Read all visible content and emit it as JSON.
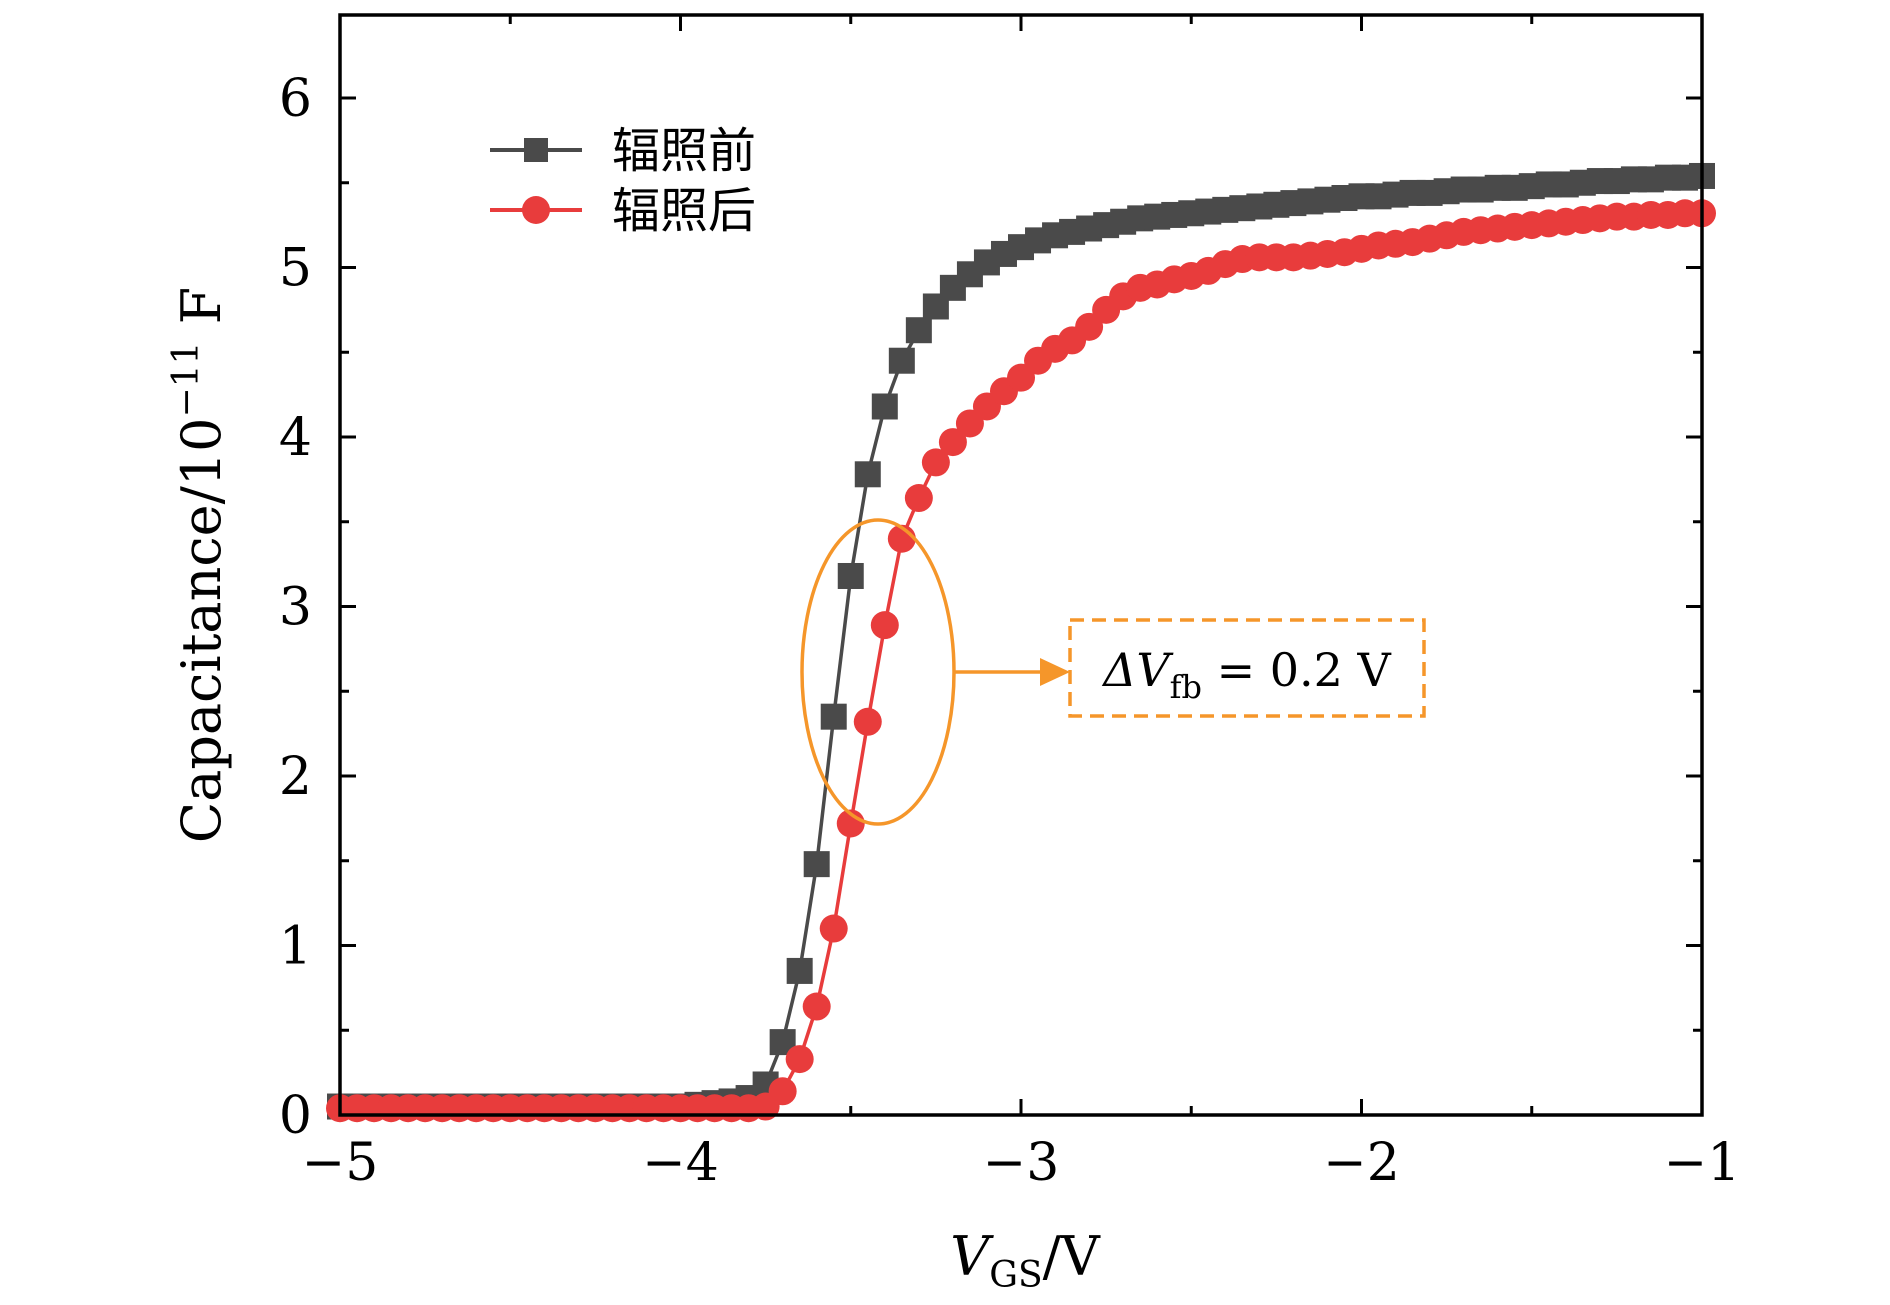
{
  "chart_data": {
    "type": "line",
    "title": "",
    "xlabel": {
      "symbol": "V",
      "subscript": "GS",
      "unit": "/V"
    },
    "ylabel": {
      "prefix": "Capacitance/10",
      "exponent": "−11",
      "unit": " F"
    },
    "xlim": [
      -5,
      -1
    ],
    "ylim": [
      0,
      6.5
    ],
    "x_ticks": [
      -5,
      -4,
      -3,
      -2,
      -1
    ],
    "x_tick_labels": [
      "−5",
      "−4",
      "−3",
      "−2",
      "−1"
    ],
    "y_ticks": [
      0,
      1,
      2,
      3,
      4,
      5,
      6
    ],
    "y_tick_labels": [
      "0",
      "1",
      "2",
      "3",
      "4",
      "5",
      "6"
    ],
    "grid": false,
    "legend_position": "top-left",
    "series": [
      {
        "name": "辐照前",
        "color": "#4a4a4a",
        "marker": "square",
        "x": [
          -5.0,
          -4.95,
          -4.9,
          -4.85,
          -4.8,
          -4.75,
          -4.7,
          -4.65,
          -4.6,
          -4.55,
          -4.5,
          -4.45,
          -4.4,
          -4.35,
          -4.3,
          -4.25,
          -4.2,
          -4.15,
          -4.1,
          -4.05,
          -4.0,
          -3.95,
          -3.9,
          -3.85,
          -3.8,
          -3.75,
          -3.7,
          -3.65,
          -3.6,
          -3.55,
          -3.5,
          -3.45,
          -3.4,
          -3.35,
          -3.3,
          -3.25,
          -3.2,
          -3.15,
          -3.1,
          -3.05,
          -3.0,
          -2.95,
          -2.9,
          -2.85,
          -2.8,
          -2.75,
          -2.7,
          -2.65,
          -2.6,
          -2.55,
          -2.5,
          -2.45,
          -2.4,
          -2.35,
          -2.3,
          -2.25,
          -2.2,
          -2.15,
          -2.1,
          -2.05,
          -2.0,
          -1.95,
          -1.9,
          -1.85,
          -1.8,
          -1.75,
          -1.7,
          -1.65,
          -1.6,
          -1.55,
          -1.5,
          -1.45,
          -1.4,
          -1.35,
          -1.3,
          -1.25,
          -1.2,
          -1.15,
          -1.1,
          -1.05,
          -1.0
        ],
        "y": [
          0.05,
          0.05,
          0.05,
          0.05,
          0.05,
          0.05,
          0.05,
          0.05,
          0.05,
          0.05,
          0.05,
          0.05,
          0.05,
          0.05,
          0.05,
          0.05,
          0.05,
          0.05,
          0.05,
          0.05,
          0.05,
          0.06,
          0.07,
          0.08,
          0.1,
          0.18,
          0.43,
          0.85,
          1.48,
          2.35,
          3.18,
          3.78,
          4.18,
          4.45,
          4.63,
          4.77,
          4.88,
          4.96,
          5.03,
          5.08,
          5.12,
          5.16,
          5.19,
          5.21,
          5.23,
          5.25,
          5.27,
          5.29,
          5.3,
          5.31,
          5.32,
          5.33,
          5.34,
          5.35,
          5.36,
          5.37,
          5.38,
          5.39,
          5.4,
          5.41,
          5.42,
          5.42,
          5.43,
          5.44,
          5.44,
          5.45,
          5.46,
          5.46,
          5.47,
          5.47,
          5.48,
          5.49,
          5.49,
          5.5,
          5.51,
          5.51,
          5.52,
          5.52,
          5.53,
          5.53,
          5.54
        ]
      },
      {
        "name": "辐照后",
        "color": "#e83c3c",
        "marker": "circle",
        "x": [
          -5.0,
          -4.95,
          -4.9,
          -4.85,
          -4.8,
          -4.75,
          -4.7,
          -4.65,
          -4.6,
          -4.55,
          -4.5,
          -4.45,
          -4.4,
          -4.35,
          -4.3,
          -4.25,
          -4.2,
          -4.15,
          -4.1,
          -4.05,
          -4.0,
          -3.95,
          -3.9,
          -3.85,
          -3.8,
          -3.75,
          -3.7,
          -3.65,
          -3.6,
          -3.55,
          -3.5,
          -3.45,
          -3.4,
          -3.35,
          -3.3,
          -3.25,
          -3.2,
          -3.15,
          -3.1,
          -3.05,
          -3.0,
          -2.95,
          -2.9,
          -2.85,
          -2.8,
          -2.75,
          -2.7,
          -2.65,
          -2.6,
          -2.55,
          -2.5,
          -2.45,
          -2.4,
          -2.35,
          -2.3,
          -2.25,
          -2.2,
          -2.15,
          -2.1,
          -2.05,
          -2.0,
          -1.95,
          -1.9,
          -1.85,
          -1.8,
          -1.75,
          -1.7,
          -1.65,
          -1.6,
          -1.55,
          -1.5,
          -1.45,
          -1.4,
          -1.35,
          -1.3,
          -1.25,
          -1.2,
          -1.15,
          -1.1,
          -1.05,
          -1.0
        ],
        "y": [
          0.04,
          0.04,
          0.04,
          0.04,
          0.04,
          0.04,
          0.04,
          0.04,
          0.04,
          0.04,
          0.04,
          0.04,
          0.04,
          0.04,
          0.04,
          0.04,
          0.04,
          0.04,
          0.04,
          0.04,
          0.04,
          0.04,
          0.04,
          0.04,
          0.04,
          0.05,
          0.14,
          0.33,
          0.64,
          1.1,
          1.72,
          2.32,
          2.89,
          3.4,
          3.64,
          3.85,
          3.97,
          4.08,
          4.18,
          4.27,
          4.35,
          4.45,
          4.52,
          4.57,
          4.65,
          4.75,
          4.83,
          4.88,
          4.9,
          4.93,
          4.95,
          4.98,
          5.02,
          5.05,
          5.06,
          5.06,
          5.06,
          5.07,
          5.08,
          5.09,
          5.11,
          5.13,
          5.14,
          5.15,
          5.17,
          5.19,
          5.21,
          5.22,
          5.23,
          5.24,
          5.25,
          5.26,
          5.27,
          5.28,
          5.29,
          5.3,
          5.3,
          5.31,
          5.31,
          5.32,
          5.32
        ]
      }
    ],
    "annotation": {
      "prefix": "ΔV",
      "subscript": "fb",
      "value": " = 0.2 V"
    }
  }
}
